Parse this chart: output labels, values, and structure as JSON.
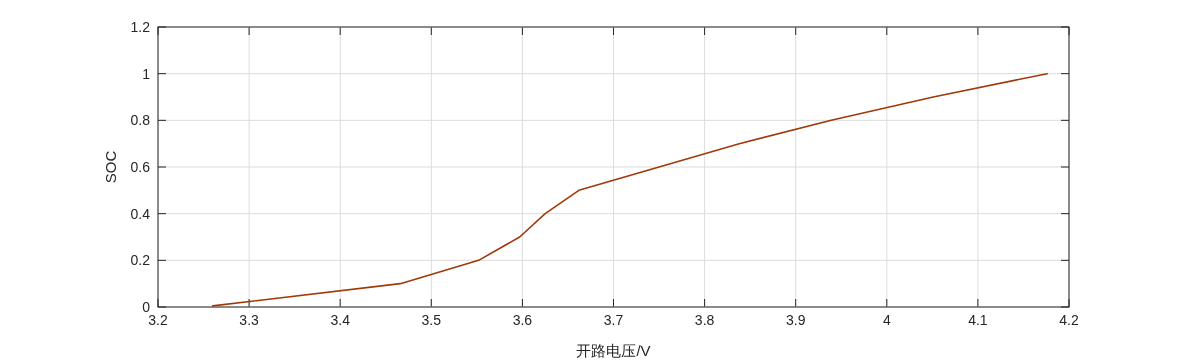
{
  "chart_data": {
    "type": "line",
    "xlabel": "开路电压/V",
    "ylabel": "SOC",
    "x": [
      3.26,
      3.466,
      3.552,
      3.597,
      3.625,
      3.662,
      3.838,
      3.939,
      4.051,
      4.176
    ],
    "series": [
      {
        "color": "#a0380a",
        "values": [
          0.005,
          0.1,
          0.2,
          0.3,
          0.4,
          0.5,
          0.7,
          0.8,
          0.9,
          1.0
        ]
      }
    ],
    "xlim": [
      3.2,
      4.2
    ],
    "xticks": [
      3.2,
      3.3,
      3.4,
      3.5,
      3.6,
      3.7,
      3.8,
      3.9,
      4,
      4.1,
      4.2
    ],
    "ylim": [
      0,
      1.2
    ],
    "yticks": [
      0,
      0.2,
      0.4,
      0.6,
      0.8,
      1,
      1.2
    ],
    "grid": true,
    "marker": "none",
    "line_style": "solid"
  }
}
